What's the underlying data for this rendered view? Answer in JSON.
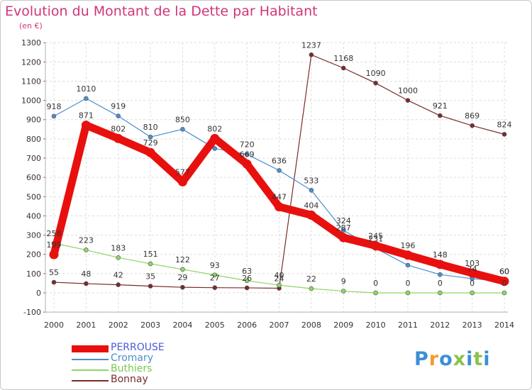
{
  "header": {
    "title": "Evolution du Montant de la Dette par Habitant",
    "subtitle": "(en €)"
  },
  "logo": {
    "text": "Proxiti",
    "colors": [
      "#3b8fd6",
      "#f29a2e",
      "#8bc34a"
    ]
  },
  "chart_data": {
    "type": "line",
    "x": [
      "2000",
      "2001",
      "2002",
      "2003",
      "2004",
      "2005",
      "2006",
      "2007",
      "2008",
      "2009",
      "2010",
      "2011",
      "2012",
      "2013",
      "2014"
    ],
    "ylim": [
      -100,
      1300
    ],
    "yticks": [
      -100,
      0,
      100,
      200,
      300,
      400,
      500,
      600,
      700,
      800,
      900,
      1000,
      1100,
      1200,
      1300
    ],
    "grid": true,
    "legend_position": "bottom-left",
    "series": [
      {
        "name": "PERROUSE",
        "color": "#e8100e",
        "legend_text_color": "#4b5bd6",
        "values": [
          199,
          871,
          802,
          729,
          577,
          802,
          669,
          447,
          404,
          287,
          245,
          196,
          148,
          103,
          60
        ],
        "labels": [
          "199",
          "871",
          "802",
          "729",
          "577",
          "802",
          "669",
          "447",
          "404",
          "287",
          "245",
          "196",
          "148",
          "103",
          "60"
        ]
      },
      {
        "name": "Cromary",
        "color": "#4a8fce",
        "legend_text_color": "#4a8fce",
        "values": [
          918,
          1010,
          919,
          810,
          850,
          750,
          720,
          636,
          533,
          324,
          231,
          144,
          95,
          74,
          60
        ],
        "labels": [
          "918",
          "1010",
          "919",
          "810",
          "850",
          "",
          "720",
          "636",
          "533",
          "324",
          "231",
          "",
          "",
          "74",
          "60"
        ]
      },
      {
        "name": "Buthiers",
        "color": "#8fd663",
        "legend_text_color": "#7cc84f",
        "values": [
          258,
          223,
          183,
          151,
          122,
          93,
          63,
          40,
          22,
          9,
          0,
          0,
          0,
          0,
          0
        ],
        "labels": [
          "258",
          "223",
          "183",
          "151",
          "122",
          "93",
          "63",
          "40",
          "22",
          "9",
          "0",
          "0",
          "0",
          "0",
          "0"
        ]
      },
      {
        "name": "Bonnay",
        "color": "#7a2b2b",
        "legend_text_color": "#7a2b2b",
        "values": [
          55,
          48,
          42,
          35,
          29,
          27,
          26,
          24,
          1237,
          1168,
          1090,
          1000,
          921,
          869,
          824
        ],
        "labels": [
          "55",
          "48",
          "42",
          "35",
          "29",
          "27",
          "26",
          "24",
          "1237",
          "1168",
          "1090",
          "1000",
          "921",
          "869",
          "824"
        ]
      }
    ]
  }
}
